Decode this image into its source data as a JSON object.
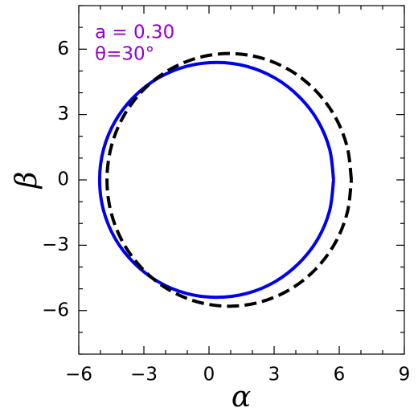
{
  "chart_data": {
    "type": "line",
    "xlabel": "α",
    "ylabel": "β",
    "annotations": [
      "a = 0.30",
      "θ=30°"
    ],
    "annotation_color": "#9400d3",
    "xlim": [
      -6,
      9
    ],
    "ylim": [
      -8,
      8
    ],
    "xticks": [
      {
        "value": -6,
        "label": "−6"
      },
      {
        "value": -3,
        "label": "−3"
      },
      0,
      3,
      6,
      9
    ],
    "yticks": [
      {
        "value": -6,
        "label": "−6"
      },
      {
        "value": -3,
        "label": "−3"
      },
      0,
      3,
      6
    ],
    "xminorticks": [
      -5,
      -4,
      -2,
      -1,
      1,
      2,
      4,
      5,
      7,
      8
    ],
    "yminorticks": [
      -8,
      -7,
      -5,
      -4,
      -2,
      -1,
      1,
      2,
      4,
      5,
      7,
      8
    ],
    "series": [
      {
        "color": "#0000ee",
        "dashed": false,
        "x": [
          5.74,
          5.56,
          5.02,
          4.16,
          3.05,
          1.75,
          0.35,
          -1.05,
          -2.35,
          -3.46,
          -4.32,
          -4.86,
          -5.04,
          -4.86,
          -4.32,
          -3.46,
          -2.35,
          -1.05,
          0.35,
          1.75,
          3.05,
          4.16,
          5.02,
          5.56,
          5.74
        ],
        "values": [
          0,
          1.4,
          2.7,
          3.81,
          4.67,
          5.21,
          5.39,
          5.21,
          4.67,
          3.81,
          2.7,
          1.4,
          0,
          -1.4,
          -2.7,
          -3.81,
          -4.67,
          -5.21,
          -5.39,
          -5.21,
          -4.67,
          -3.81,
          -2.7,
          -1.4,
          0
        ]
      },
      {
        "color": "#000000",
        "dashed": true,
        "x": [
          6.56,
          6.37,
          5.81,
          4.91,
          3.75,
          2.39,
          0.93,
          -0.53,
          -1.89,
          -3.05,
          -3.95,
          -4.51,
          -4.7,
          -4.51,
          -3.95,
          -3.05,
          -1.89,
          -0.53,
          0.93,
          2.39,
          3.75,
          4.91,
          5.81,
          6.37,
          6.56
        ],
        "values": [
          0,
          1.5,
          2.9,
          4.1,
          5.02,
          5.6,
          5.8,
          5.6,
          5.02,
          4.1,
          2.9,
          1.5,
          0,
          -1.5,
          -2.9,
          -4.1,
          -5.02,
          -5.6,
          -5.8,
          -5.6,
          -5.02,
          -4.1,
          -2.9,
          -1.5,
          0
        ]
      }
    ]
  }
}
